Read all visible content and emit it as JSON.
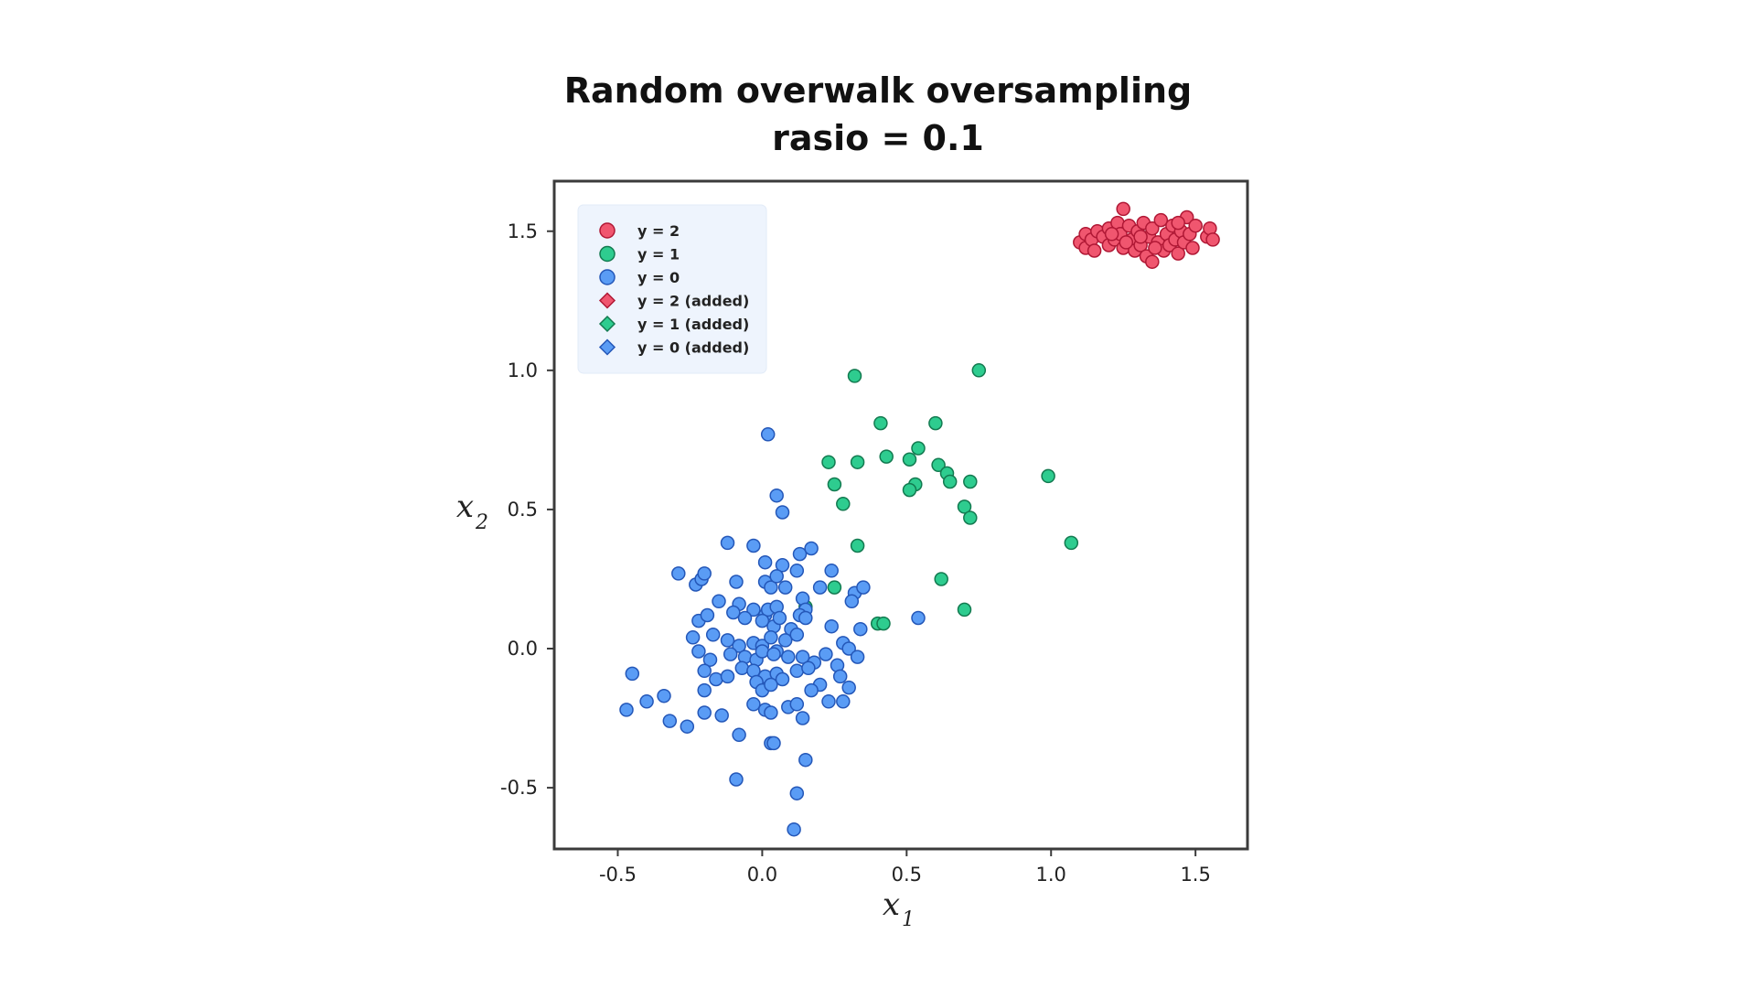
{
  "chart_data": {
    "type": "scatter",
    "title": [
      "Random overwalk oversampling",
      "rasio = 0.1"
    ],
    "xlabel": {
      "base": "x",
      "sub": "1"
    },
    "ylabel": {
      "base": "x",
      "sub": "2"
    },
    "xlim": [
      -0.72,
      1.68
    ],
    "ylim": [
      -0.72,
      1.68
    ],
    "xticks": [
      -0.5,
      0.0,
      0.5,
      1.0,
      1.5
    ],
    "yticks": [
      -0.5,
      0.0,
      0.5,
      1.0,
      1.5
    ],
    "xtick_labels": [
      "-0.5",
      "0.0",
      "0.5",
      "1.0",
      "1.5"
    ],
    "ytick_labels": [
      "-0.5",
      "0.0",
      "0.5",
      "1.0",
      "1.5"
    ],
    "grid": false,
    "legend_position": "top-left",
    "legend": [
      {
        "label": "y = 2",
        "marker": "circle",
        "color": "#f0566f",
        "edge": "#b01835"
      },
      {
        "label": "y = 1",
        "marker": "circle",
        "color": "#2ecc8f",
        "edge": "#137a50"
      },
      {
        "label": "y = 0",
        "marker": "circle",
        "color": "#5a9cf5",
        "edge": "#2457b8"
      },
      {
        "label": "y = 2 (added)",
        "marker": "diamond",
        "color": "#f0566f",
        "edge": "#b01835"
      },
      {
        "label": "y = 1 (added)",
        "marker": "diamond",
        "color": "#2ecc8f",
        "edge": "#137a50"
      },
      {
        "label": "y = 0 (added)",
        "marker": "diamond",
        "color": "#5a9cf5",
        "edge": "#2457b8"
      }
    ],
    "series": [
      {
        "name": "y = 2",
        "marker": "circle",
        "color": "#f0566f",
        "edge": "#b01835",
        "points": [
          [
            1.1,
            1.46
          ],
          [
            1.12,
            1.49
          ],
          [
            1.12,
            1.44
          ],
          [
            1.14,
            1.47
          ],
          [
            1.15,
            1.43
          ],
          [
            1.16,
            1.5
          ],
          [
            1.18,
            1.48
          ],
          [
            1.2,
            1.45
          ],
          [
            1.2,
            1.51
          ],
          [
            1.22,
            1.47
          ],
          [
            1.23,
            1.53
          ],
          [
            1.24,
            1.49
          ],
          [
            1.25,
            1.58
          ],
          [
            1.25,
            1.44
          ],
          [
            1.27,
            1.52
          ],
          [
            1.28,
            1.47
          ],
          [
            1.29,
            1.43
          ],
          [
            1.3,
            1.5
          ],
          [
            1.31,
            1.45
          ],
          [
            1.32,
            1.53
          ],
          [
            1.33,
            1.41
          ],
          [
            1.34,
            1.48
          ],
          [
            1.35,
            1.39
          ],
          [
            1.35,
            1.51
          ],
          [
            1.37,
            1.46
          ],
          [
            1.38,
            1.54
          ],
          [
            1.39,
            1.43
          ],
          [
            1.4,
            1.49
          ],
          [
            1.41,
            1.45
          ],
          [
            1.42,
            1.52
          ],
          [
            1.43,
            1.47
          ],
          [
            1.44,
            1.42
          ],
          [
            1.45,
            1.5
          ],
          [
            1.46,
            1.46
          ],
          [
            1.47,
            1.55
          ],
          [
            1.48,
            1.49
          ],
          [
            1.49,
            1.44
          ],
          [
            1.5,
            1.52
          ],
          [
            1.54,
            1.48
          ],
          [
            1.55,
            1.51
          ],
          [
            1.56,
            1.47
          ],
          [
            1.26,
            1.46
          ],
          [
            1.36,
            1.44
          ],
          [
            1.44,
            1.53
          ],
          [
            1.21,
            1.49
          ],
          [
            1.31,
            1.48
          ]
        ]
      },
      {
        "name": "y = 1",
        "marker": "circle",
        "color": "#2ecc8f",
        "edge": "#137a50",
        "points": [
          [
            0.32,
            0.98
          ],
          [
            0.75,
            1.0
          ],
          [
            0.41,
            0.81
          ],
          [
            0.6,
            0.81
          ],
          [
            0.23,
            0.67
          ],
          [
            0.33,
            0.67
          ],
          [
            0.43,
            0.69
          ],
          [
            0.54,
            0.72
          ],
          [
            0.51,
            0.68
          ],
          [
            0.61,
            0.66
          ],
          [
            0.64,
            0.63
          ],
          [
            0.65,
            0.6
          ],
          [
            0.72,
            0.6
          ],
          [
            0.25,
            0.59
          ],
          [
            0.53,
            0.59
          ],
          [
            0.51,
            0.57
          ],
          [
            0.99,
            0.62
          ],
          [
            0.28,
            0.52
          ],
          [
            0.7,
            0.51
          ],
          [
            0.72,
            0.47
          ],
          [
            1.07,
            0.38
          ],
          [
            0.33,
            0.37
          ],
          [
            0.62,
            0.25
          ],
          [
            0.25,
            0.22
          ],
          [
            0.7,
            0.14
          ],
          [
            0.15,
            0.15
          ],
          [
            0.4,
            0.09
          ],
          [
            0.42,
            0.09
          ]
        ]
      },
      {
        "name": "y = 0",
        "marker": "circle",
        "color": "#5a9cf5",
        "edge": "#2457b8",
        "points": [
          [
            0.02,
            0.77
          ],
          [
            0.05,
            0.55
          ],
          [
            0.07,
            0.49
          ],
          [
            -0.12,
            0.38
          ],
          [
            -0.03,
            0.37
          ],
          [
            0.13,
            0.34
          ],
          [
            0.17,
            0.36
          ],
          [
            0.07,
            0.3
          ],
          [
            0.01,
            0.31
          ],
          [
            -0.29,
            0.27
          ],
          [
            -0.23,
            0.23
          ],
          [
            -0.21,
            0.25
          ],
          [
            -0.2,
            0.27
          ],
          [
            -0.09,
            0.24
          ],
          [
            0.01,
            0.24
          ],
          [
            0.03,
            0.22
          ],
          [
            0.05,
            0.26
          ],
          [
            0.08,
            0.22
          ],
          [
            0.12,
            0.28
          ],
          [
            -0.15,
            0.17
          ],
          [
            -0.08,
            0.16
          ],
          [
            -0.03,
            0.14
          ],
          [
            0.01,
            0.12
          ],
          [
            0.02,
            0.14
          ],
          [
            0.05,
            0.15
          ],
          [
            0.14,
            0.18
          ],
          [
            0.15,
            0.14
          ],
          [
            0.2,
            0.22
          ],
          [
            0.24,
            0.28
          ],
          [
            0.32,
            0.2
          ],
          [
            0.35,
            0.22
          ],
          [
            0.31,
            0.17
          ],
          [
            -0.22,
            0.1
          ],
          [
            -0.19,
            0.12
          ],
          [
            -0.1,
            0.13
          ],
          [
            -0.06,
            0.11
          ],
          [
            0.0,
            0.1
          ],
          [
            0.04,
            0.08
          ],
          [
            0.06,
            0.11
          ],
          [
            0.1,
            0.07
          ],
          [
            0.13,
            0.12
          ],
          [
            0.15,
            0.11
          ],
          [
            0.24,
            0.08
          ],
          [
            0.34,
            0.07
          ],
          [
            0.54,
            0.11
          ],
          [
            -0.24,
            0.04
          ],
          [
            -0.17,
            0.05
          ],
          [
            -0.12,
            0.03
          ],
          [
            -0.08,
            0.01
          ],
          [
            -0.03,
            0.02
          ],
          [
            0.0,
            0.01
          ],
          [
            0.03,
            0.04
          ],
          [
            0.05,
            -0.01
          ],
          [
            0.08,
            0.03
          ],
          [
            0.12,
            0.05
          ],
          [
            0.28,
            0.02
          ],
          [
            0.3,
            0.0
          ],
          [
            0.33,
            -0.03
          ],
          [
            -0.22,
            -0.01
          ],
          [
            -0.18,
            -0.04
          ],
          [
            -0.11,
            -0.02
          ],
          [
            -0.06,
            -0.03
          ],
          [
            -0.02,
            -0.04
          ],
          [
            0.0,
            -0.01
          ],
          [
            0.04,
            -0.02
          ],
          [
            0.09,
            -0.03
          ],
          [
            0.14,
            -0.03
          ],
          [
            0.18,
            -0.05
          ],
          [
            0.22,
            -0.02
          ],
          [
            0.26,
            -0.06
          ],
          [
            -0.45,
            -0.09
          ],
          [
            -0.2,
            -0.08
          ],
          [
            -0.16,
            -0.11
          ],
          [
            -0.12,
            -0.1
          ],
          [
            -0.07,
            -0.07
          ],
          [
            -0.03,
            -0.08
          ],
          [
            0.01,
            -0.1
          ],
          [
            0.05,
            -0.09
          ],
          [
            0.07,
            -0.11
          ],
          [
            0.12,
            -0.08
          ],
          [
            0.16,
            -0.07
          ],
          [
            0.2,
            -0.13
          ],
          [
            0.27,
            -0.1
          ],
          [
            0.3,
            -0.14
          ],
          [
            -0.4,
            -0.19
          ],
          [
            -0.34,
            -0.17
          ],
          [
            -0.2,
            -0.15
          ],
          [
            -0.02,
            -0.12
          ],
          [
            0.0,
            -0.15
          ],
          [
            0.03,
            -0.13
          ],
          [
            0.17,
            -0.15
          ],
          [
            -0.47,
            -0.22
          ],
          [
            -0.32,
            -0.26
          ],
          [
            -0.26,
            -0.28
          ],
          [
            -0.2,
            -0.23
          ],
          [
            -0.14,
            -0.24
          ],
          [
            -0.03,
            -0.2
          ],
          [
            0.01,
            -0.22
          ],
          [
            0.03,
            -0.23
          ],
          [
            0.09,
            -0.21
          ],
          [
            0.12,
            -0.2
          ],
          [
            0.14,
            -0.25
          ],
          [
            0.23,
            -0.19
          ],
          [
            0.28,
            -0.19
          ],
          [
            -0.08,
            -0.31
          ],
          [
            0.03,
            -0.34
          ],
          [
            0.04,
            -0.34
          ],
          [
            0.15,
            -0.4
          ],
          [
            -0.09,
            -0.47
          ],
          [
            0.12,
            -0.52
          ],
          [
            0.11,
            -0.65
          ]
        ]
      }
    ]
  }
}
